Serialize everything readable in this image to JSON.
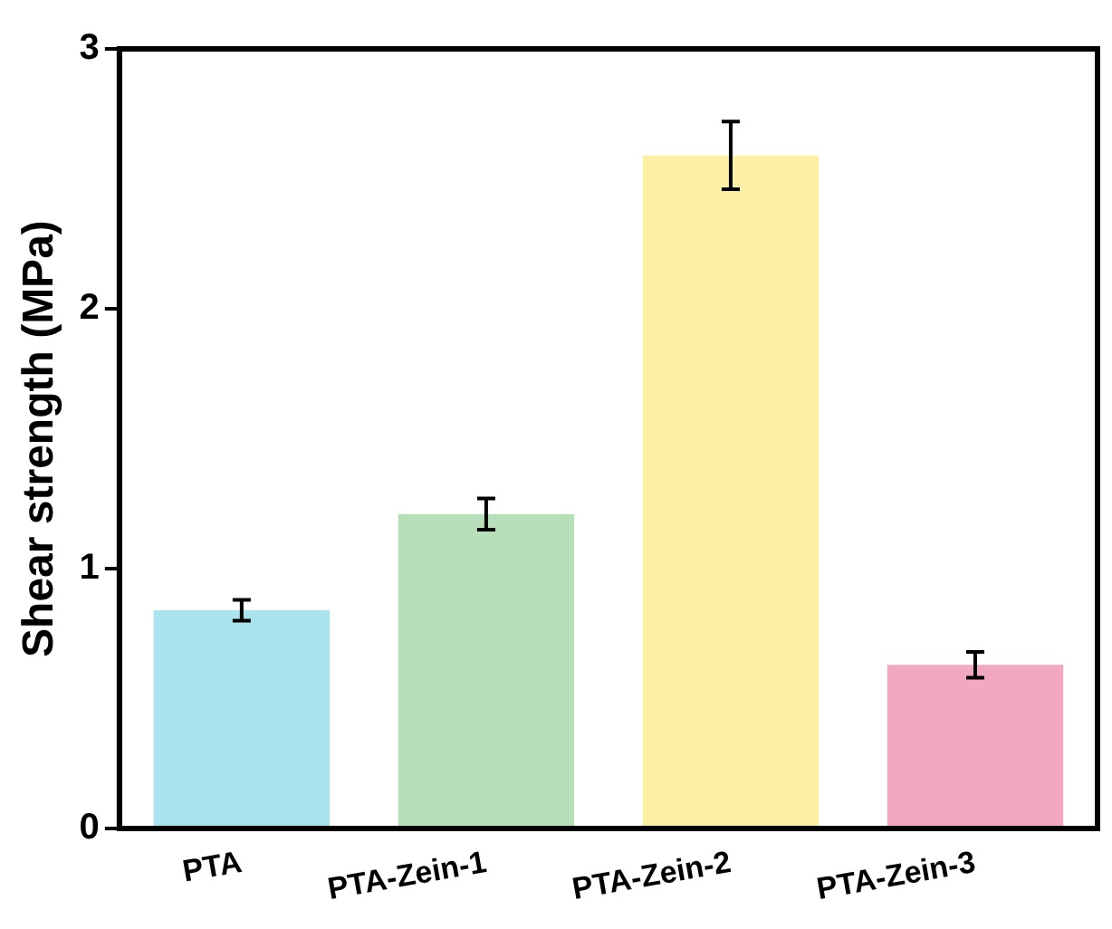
{
  "chart_data": {
    "type": "bar",
    "ylabel": "Shear strength (MPa)",
    "categories": [
      "PTA",
      "PTA-Zein-1",
      "PTA-Zein-2",
      "PTA-Zein-3"
    ],
    "values": [
      0.84,
      1.21,
      2.59,
      0.63
    ],
    "errors": [
      0.04,
      0.06,
      0.13,
      0.05
    ],
    "colors": [
      "#a8e3ee",
      "#b6dfba",
      "#fcf0a4",
      "#f2a8c0"
    ],
    "ylim": [
      0,
      3
    ],
    "yticks": [
      0,
      1,
      2,
      3
    ],
    "grid": false,
    "legend": false
  }
}
